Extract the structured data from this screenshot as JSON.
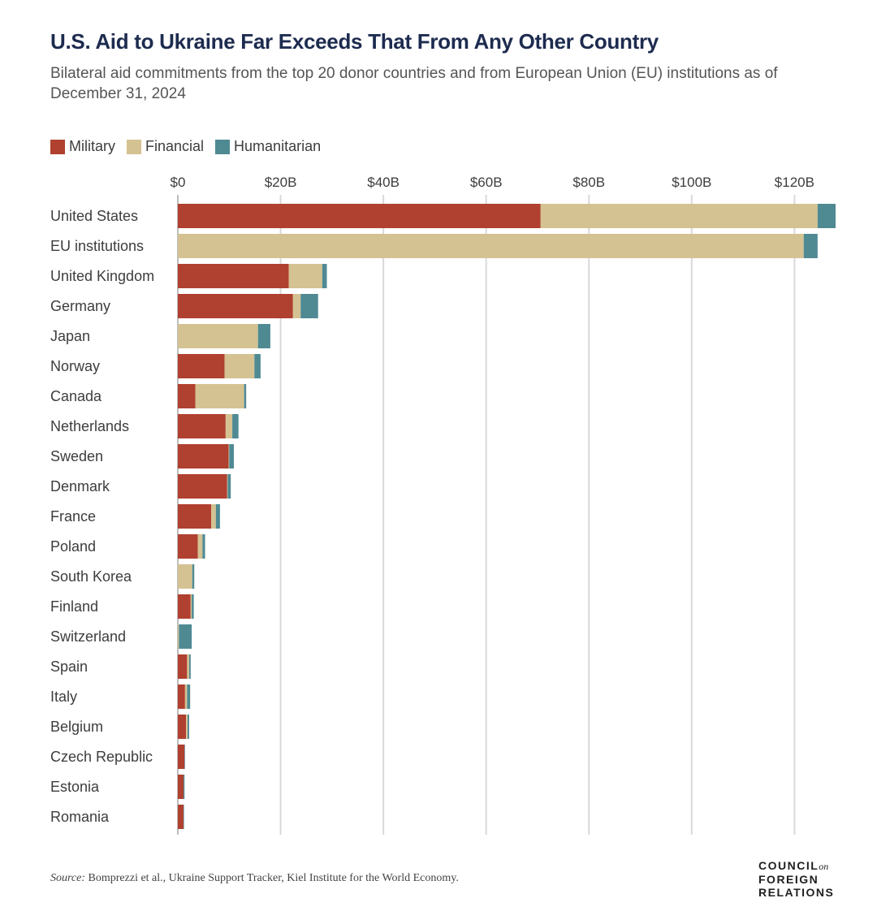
{
  "title": "U.S. Aid to Ukraine Far Exceeds That From Any Other Country",
  "subtitle": "Bilateral aid commitments from the top 20 donor countries and from European Union (EU) institutions as of December 31, 2024",
  "source": {
    "label": "Source:",
    "text": "Bomprezzi et al., Ukraine Support Tracker, Kiel Institute for the World Economy."
  },
  "logo": {
    "line1": "COUNCIL",
    "on": "on",
    "line2": "FOREIGN",
    "line3": "RELATIONS"
  },
  "colors": {
    "military": "#b0402f",
    "financial": "#d4c292",
    "humanitarian": "#4f8a93",
    "grid": "#d9d9d9"
  },
  "chart_data": {
    "type": "bar",
    "orientation": "horizontal",
    "stacked": true,
    "xlim": [
      0,
      128
    ],
    "ticks": [
      0,
      20,
      40,
      60,
      80,
      100,
      120
    ],
    "tick_labels": [
      "$0",
      "$20B",
      "$40B",
      "$60B",
      "$80B",
      "$100B",
      "$120B"
    ],
    "legend_position": "top-left",
    "grid": true,
    "categories": [
      "United States",
      "EU institutions",
      "United Kingdom",
      "Germany",
      "Japan",
      "Norway",
      "Canada",
      "Netherlands",
      "Sweden",
      "Denmark",
      "France",
      "Poland",
      "South Korea",
      "Finland",
      "Switzerland",
      "Spain",
      "Italy",
      "Belgium",
      "Czech Republic",
      "Estonia",
      "Romania"
    ],
    "series": [
      {
        "name": "Military",
        "color": "#b0402f",
        "values": [
          70.6,
          0,
          21.6,
          22.4,
          0,
          9.1,
          3.4,
          9.3,
          9.9,
          9.6,
          6.5,
          3.9,
          0,
          2.5,
          0,
          1.8,
          1.4,
          1.6,
          1.3,
          1.1,
          1.1
        ]
      },
      {
        "name": "Financial",
        "color": "#d4c292",
        "values": [
          53.9,
          121.8,
          6.5,
          1.5,
          15.6,
          5.8,
          9.5,
          1.3,
          0.1,
          0.1,
          0.9,
          0.9,
          2.8,
          0.2,
          0.2,
          0.4,
          0.4,
          0.3,
          0,
          0,
          0
        ]
      },
      {
        "name": "Humanitarian",
        "color": "#4f8a93",
        "values": [
          3.5,
          2.7,
          0.9,
          3.4,
          2.4,
          1.2,
          0.4,
          1.2,
          0.9,
          0.6,
          0.8,
          0.5,
          0.4,
          0.4,
          2.5,
          0.3,
          0.6,
          0.3,
          0.1,
          0.2,
          0.1
        ]
      }
    ]
  }
}
